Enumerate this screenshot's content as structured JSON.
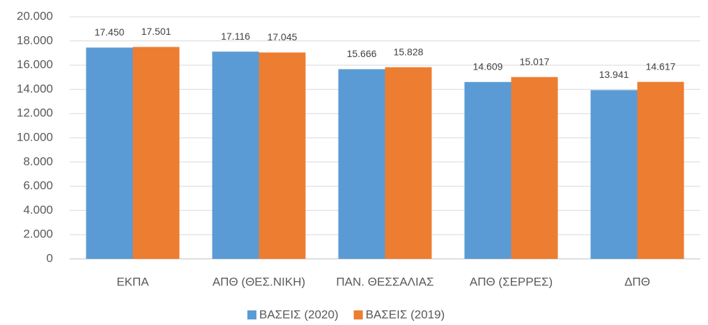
{
  "chart_data": {
    "type": "bar",
    "categories": [
      "ΕΚΠΑ",
      "ΑΠΘ (ΘΕΣ.ΝΙΚΗ)",
      "ΠΑΝ. ΘΕΣΣΑΛΙΑΣ",
      "ΑΠΘ (ΣΕΡΡΕΣ)",
      "ΔΠΘ"
    ],
    "series": [
      {
        "name": "ΒΑΣΕΙΣ (2020)",
        "color": "#5b9bd5",
        "values": [
          17450,
          17116,
          15666,
          14609,
          13941
        ],
        "value_labels": [
          "17.450",
          "17.116",
          "15.666",
          "14.609",
          "13.941"
        ]
      },
      {
        "name": "ΒΑΣΕΙΣ (2019)",
        "color": "#ed7d31",
        "values": [
          17501,
          17045,
          15828,
          15017,
          14617
        ],
        "value_labels": [
          "17.501",
          "17.045",
          "15.828",
          "15.017",
          "14.617"
        ]
      }
    ],
    "ylim": [
      0,
      20000
    ],
    "yticks": [
      0,
      {
        "value": 2000,
        "label": "2.000"
      },
      {
        "value": 4000,
        "label": "4.000"
      },
      {
        "value": 6000,
        "label": "6.000"
      },
      {
        "value": 8000,
        "label": "8.000"
      },
      {
        "value": 10000,
        "label": "10.000"
      },
      {
        "value": 12000,
        "label": "12.000"
      },
      {
        "value": 14000,
        "label": "14.000"
      },
      {
        "value": 16000,
        "label": "16.000"
      },
      {
        "value": 18000,
        "label": "18.000"
      },
      {
        "value": 20000,
        "label": "20.000"
      }
    ],
    "grid": true,
    "legend": "bottom"
  }
}
